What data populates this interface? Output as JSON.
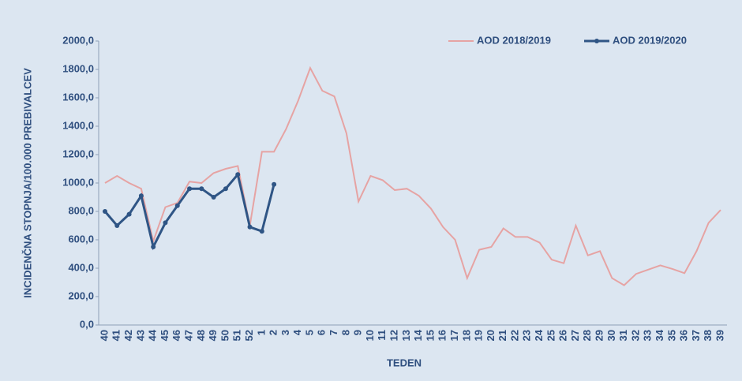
{
  "chart_data": {
    "type": "line",
    "x_label": "TEDEN",
    "y_label": "INCIDENČNA STOPNJA/100.000  PREBIVALCEV",
    "categories": [
      "40",
      "41",
      "42",
      "43",
      "44",
      "45",
      "46",
      "47",
      "48",
      "49",
      "50",
      "51",
      "52",
      "1",
      "2",
      "3",
      "4",
      "5",
      "6",
      "7",
      "8",
      "9",
      "10",
      "11",
      "12",
      "13",
      "14",
      "15",
      "16",
      "17",
      "18",
      "19",
      "20",
      "21",
      "22",
      "23",
      "24",
      "25",
      "26",
      "27",
      "28",
      "29",
      "30",
      "31",
      "32",
      "33",
      "34",
      "35",
      "36",
      "37",
      "38",
      "39"
    ],
    "series": [
      {
        "name": "AOD 2018/2019",
        "color": "#e6a3a3",
        "markers": false,
        "values": [
          1000,
          1050,
          1000,
          960,
          590,
          830,
          860,
          1010,
          1000,
          1070,
          1100,
          1120,
          700,
          1220,
          1220,
          1380,
          1580,
          1810,
          1650,
          1610,
          1350,
          870,
          1050,
          1020,
          950,
          960,
          910,
          820,
          690,
          600,
          330,
          530,
          550,
          680,
          620,
          620,
          580,
          460,
          435,
          700,
          490,
          520,
          330,
          280,
          360,
          390,
          420,
          395,
          365,
          520,
          720,
          810
        ]
      },
      {
        "name": "AOD 2019/2020",
        "color": "#2f5585",
        "markers": true,
        "values": [
          800,
          700,
          780,
          910,
          550,
          720,
          840,
          960,
          960,
          900,
          960,
          1060,
          690,
          660,
          990,
          null,
          null,
          null,
          null,
          null,
          null,
          null,
          null,
          null,
          null,
          null,
          null,
          null,
          null,
          null,
          null,
          null,
          null,
          null,
          null,
          null,
          null,
          null,
          null,
          null,
          null,
          null,
          null,
          null,
          null,
          null,
          null,
          null,
          null,
          null,
          null,
          null
        ]
      }
    ],
    "ylim": [
      0,
      2000
    ],
    "yticks": [
      {
        "value": 0,
        "label": "0,0"
      },
      {
        "value": 200,
        "label": "200,0"
      },
      {
        "value": 400,
        "label": "400,0"
      },
      {
        "value": 600,
        "label": "600,0"
      },
      {
        "value": 800,
        "label": "800,0"
      },
      {
        "value": 1000,
        "label": "1000,0"
      },
      {
        "value": 1200,
        "label": "1200,0"
      },
      {
        "value": 1400,
        "label": "1400,0"
      },
      {
        "value": 1600,
        "label": "1600,0"
      },
      {
        "value": 1800,
        "label": "1800,0"
      },
      {
        "value": 2000,
        "label": "2000,0"
      }
    ],
    "grid": false,
    "legend": "top-right"
  }
}
